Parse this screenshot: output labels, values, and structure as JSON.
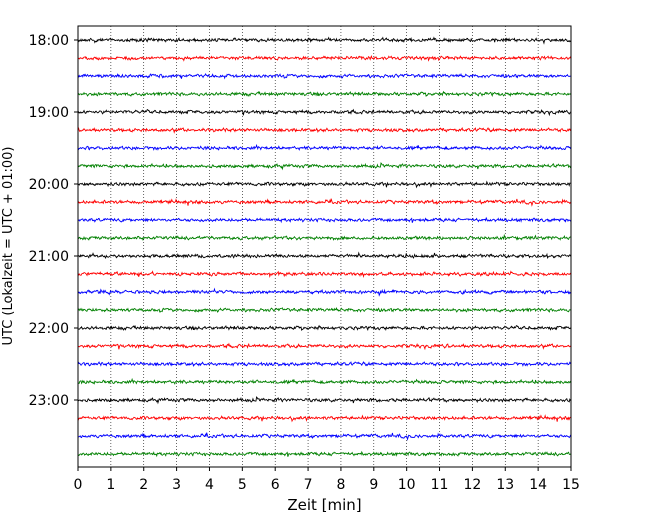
{
  "chart_data": {
    "type": "line",
    "title": "",
    "xlabel": "Zeit  [min]",
    "ylabel": "UTC (Lokalzeit = UTC + 01:00)",
    "xlim": [
      0,
      15
    ],
    "x_ticks": [
      0,
      1,
      2,
      3,
      4,
      5,
      6,
      7,
      8,
      9,
      10,
      11,
      12,
      13,
      14,
      15
    ],
    "x_tick_labels": [
      "0",
      "1",
      "2",
      "3",
      "4",
      "5",
      "6",
      "7",
      "8",
      "9",
      "10",
      "11",
      "12",
      "13",
      "14",
      "15"
    ],
    "y_tick_labels": [
      "18:00",
      "19:00",
      "20:00",
      "21:00",
      "22:00",
      "23:00"
    ],
    "grid": "vertical dotted lines at each minute",
    "trace_interval_min": 15,
    "trace_colors": [
      "#000000",
      "#ff0000",
      "#0000ff",
      "#008000"
    ],
    "traces": [
      {
        "start": "18:00",
        "color": "#000000"
      },
      {
        "start": "18:15",
        "color": "#ff0000"
      },
      {
        "start": "18:30",
        "color": "#0000ff"
      },
      {
        "start": "18:45",
        "color": "#008000"
      },
      {
        "start": "19:00",
        "color": "#000000"
      },
      {
        "start": "19:15",
        "color": "#ff0000"
      },
      {
        "start": "19:30",
        "color": "#0000ff"
      },
      {
        "start": "19:45",
        "color": "#008000"
      },
      {
        "start": "20:00",
        "color": "#000000"
      },
      {
        "start": "20:15",
        "color": "#ff0000"
      },
      {
        "start": "20:30",
        "color": "#0000ff"
      },
      {
        "start": "20:45",
        "color": "#008000"
      },
      {
        "start": "21:00",
        "color": "#000000"
      },
      {
        "start": "21:15",
        "color": "#ff0000"
      },
      {
        "start": "21:30",
        "color": "#0000ff"
      },
      {
        "start": "21:45",
        "color": "#008000"
      },
      {
        "start": "22:00",
        "color": "#000000"
      },
      {
        "start": "22:15",
        "color": "#ff0000"
      },
      {
        "start": "22:30",
        "color": "#0000ff"
      },
      {
        "start": "22:45",
        "color": "#008000"
      },
      {
        "start": "23:00",
        "color": "#000000"
      },
      {
        "start": "23:15",
        "color": "#ff0000"
      },
      {
        "start": "23:30",
        "color": "#0000ff"
      },
      {
        "start": "23:45",
        "color": "#008000"
      }
    ]
  }
}
